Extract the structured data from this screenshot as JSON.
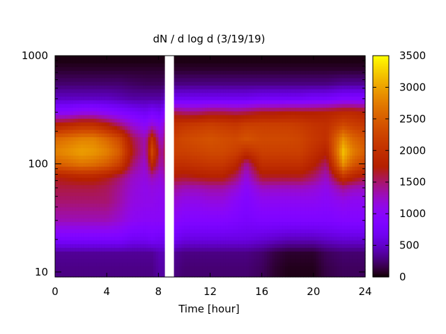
{
  "chart_data": {
    "type": "heatmap",
    "title": "dN / d log d (3/19/19)",
    "xlabel": "Time [hour]",
    "ylabel": "",
    "x_range": [
      0,
      24
    ],
    "y_range": [
      9,
      1000
    ],
    "y_scale": "log",
    "x_ticks": [
      "0",
      "4",
      "8",
      "12",
      "16",
      "20",
      "24"
    ],
    "y_ticks": [
      "10",
      "100",
      "1000"
    ],
    "colorbar": {
      "range": [
        0,
        3500
      ],
      "ticks": [
        "0",
        "500",
        "1000",
        "1500",
        "2000",
        "2500",
        "3000",
        "3500"
      ],
      "colormap": "gnuplot pm3d (black-purple-red-orange-yellow)"
    },
    "time_points": [
      0,
      1,
      2,
      3,
      4,
      5,
      6,
      7,
      7.5,
      8.2,
      9.2,
      10,
      11,
      12,
      13,
      14,
      14.8,
      16,
      17,
      18,
      19,
      20,
      21,
      22.3,
      23,
      24
    ],
    "diameter_bins": [
      10,
      15,
      20,
      30,
      45,
      60,
      75,
      100,
      130,
      170,
      230,
      300,
      400,
      550,
      750,
      900
    ],
    "dN_dlogd": [
      [
        300,
        350,
        800,
        1300,
        1500,
        1600,
        1700,
        2500,
        2800,
        2600,
        1800,
        1000,
        500,
        250,
        100,
        40
      ],
      [
        300,
        350,
        800,
        1300,
        1500,
        1600,
        1750,
        2600,
        2900,
        2700,
        1900,
        1000,
        500,
        250,
        100,
        40
      ],
      [
        300,
        350,
        800,
        1300,
        1500,
        1600,
        1800,
        2700,
        3000,
        2800,
        2000,
        1100,
        500,
        250,
        100,
        40
      ],
      [
        300,
        350,
        800,
        1300,
        1500,
        1600,
        1800,
        2650,
        2950,
        2800,
        2000,
        1100,
        500,
        250,
        100,
        40
      ],
      [
        300,
        350,
        800,
        1300,
        1500,
        1550,
        1700,
        2500,
        2800,
        2600,
        1800,
        1000,
        500,
        250,
        100,
        40
      ],
      [
        300,
        350,
        800,
        1200,
        1350,
        1400,
        1500,
        2200,
        2500,
        2300,
        1500,
        900,
        450,
        250,
        100,
        40
      ],
      [
        300,
        350,
        700,
        1050,
        1150,
        1200,
        1250,
        1500,
        1700,
        1600,
        1200,
        800,
        400,
        220,
        100,
        40
      ],
      [
        300,
        350,
        700,
        1000,
        1100,
        1100,
        1150,
        1200,
        1300,
        1300,
        1000,
        700,
        400,
        200,
        100,
        40
      ],
      [
        300,
        350,
        750,
        1000,
        1100,
        1150,
        1300,
        1900,
        2300,
        2000,
        1200,
        800,
        400,
        200,
        100,
        40
      ],
      [
        400,
        450,
        700,
        1000,
        1050,
        1100,
        1150,
        1300,
        1350,
        1200,
        1000,
        700,
        400,
        200,
        100,
        40
      ],
      [
        300,
        350,
        700,
        1000,
        1200,
        1400,
        1700,
        2000,
        2200,
        2200,
        2000,
        1600,
        700,
        300,
        100,
        40
      ],
      [
        250,
        300,
        600,
        900,
        1100,
        1300,
        1650,
        2000,
        2200,
        2300,
        2100,
        1500,
        700,
        300,
        100,
        40
      ],
      [
        250,
        300,
        600,
        900,
        1100,
        1300,
        1700,
        2050,
        2250,
        2350,
        2150,
        1500,
        700,
        300,
        100,
        40
      ],
      [
        250,
        300,
        600,
        900,
        1150,
        1350,
        1750,
        2100,
        2300,
        2400,
        2200,
        1600,
        700,
        300,
        100,
        40
      ],
      [
        250,
        300,
        600,
        900,
        1150,
        1350,
        1750,
        2100,
        2300,
        2350,
        2150,
        1600,
        700,
        300,
        100,
        40
      ],
      [
        250,
        300,
        600,
        850,
        1000,
        1200,
        1500,
        1900,
        2200,
        2300,
        2100,
        1550,
        700,
        300,
        100,
        40
      ],
      [
        250,
        300,
        600,
        800,
        900,
        1000,
        1150,
        1400,
        2000,
        2400,
        2200,
        1600,
        700,
        300,
        100,
        40
      ],
      [
        200,
        250,
        550,
        850,
        1050,
        1250,
        1650,
        2000,
        2200,
        2300,
        2200,
        1700,
        750,
        300,
        100,
        40
      ],
      [
        100,
        150,
        500,
        850,
        1050,
        1250,
        1650,
        2000,
        2200,
        2300,
        2200,
        1700,
        750,
        300,
        100,
        40
      ],
      [
        50,
        100,
        450,
        850,
        1050,
        1250,
        1650,
        2000,
        2200,
        2300,
        2200,
        1750,
        750,
        300,
        100,
        40
      ],
      [
        50,
        100,
        450,
        850,
        1050,
        1250,
        1650,
        2000,
        2200,
        2250,
        2150,
        1750,
        750,
        300,
        100,
        40
      ],
      [
        50,
        100,
        450,
        850,
        1050,
        1200,
        1500,
        1800,
        2000,
        2100,
        2050,
        1750,
        800,
        300,
        100,
        40
      ],
      [
        150,
        200,
        500,
        850,
        1000,
        1100,
        1250,
        1500,
        1800,
        2000,
        2000,
        1800,
        800,
        300,
        100,
        40
      ],
      [
        200,
        250,
        550,
        900,
        1100,
        1400,
        2000,
        2900,
        3200,
        2900,
        2300,
        1900,
        900,
        350,
        100,
        40
      ],
      [
        200,
        250,
        550,
        900,
        1050,
        1300,
        1800,
        2500,
        2800,
        2600,
        2200,
        1900,
        900,
        350,
        100,
        40
      ],
      [
        200,
        250,
        550,
        900,
        1050,
        1250,
        1600,
        2200,
        2500,
        2400,
        2100,
        1800,
        900,
        350,
        100,
        40
      ]
    ],
    "data_gaps": [
      {
        "x": [
          8.5,
          9.2
        ],
        "y": [
          9,
          1000
        ]
      }
    ]
  }
}
